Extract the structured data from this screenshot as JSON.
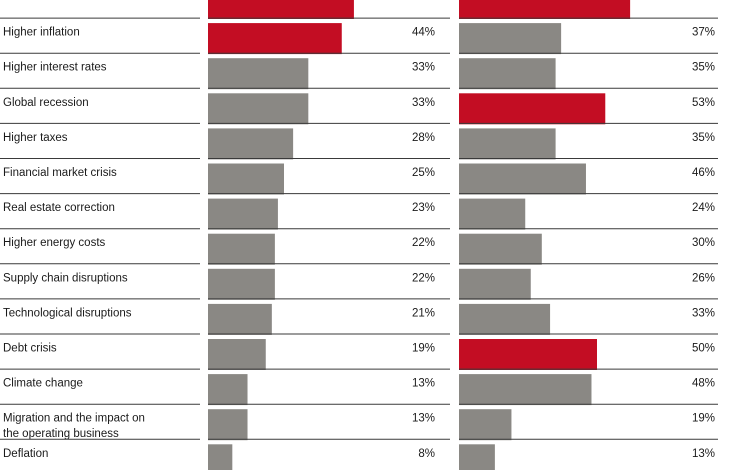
{
  "chart_data": {
    "type": "bar",
    "orientation": "horizontal",
    "categories": [
      "",
      "Higher inflation",
      "Higher interest rates",
      "Global recession",
      "Higher taxes",
      "Financial market crisis",
      "Real estate correction",
      "Higher energy costs",
      "Supply chain disruptions",
      "Technological disruptions",
      "Debt crisis",
      "Climate change",
      "Migration and the impact on the operating business",
      "Deflation"
    ],
    "series": [
      {
        "values": [
          48,
          44,
          33,
          33,
          28,
          25,
          23,
          22,
          22,
          21,
          19,
          13,
          13,
          8
        ],
        "labels": [
          "",
          "44%",
          "33%",
          "33%",
          "28%",
          "25%",
          "23%",
          "22%",
          "22%",
          "21%",
          "19%",
          "13%",
          "13%",
          "8%"
        ],
        "highlighted": [
          true,
          true,
          false,
          false,
          false,
          false,
          false,
          false,
          false,
          false,
          false,
          false,
          false,
          false
        ]
      },
      {
        "values": [
          62,
          37,
          35,
          53,
          35,
          46,
          24,
          30,
          26,
          33,
          50,
          48,
          19,
          13
        ],
        "labels": [
          "",
          "37%",
          "35%",
          "53%",
          "35%",
          "46%",
          "24%",
          "30%",
          "26%",
          "33%",
          "50%",
          "48%",
          "19%",
          "13%"
        ],
        "highlighted": [
          true,
          false,
          false,
          true,
          false,
          false,
          false,
          false,
          false,
          false,
          true,
          false,
          false,
          false
        ]
      }
    ],
    "xlim": [
      0,
      100
    ],
    "colors": {
      "highlight": "#c30d23",
      "default": "#8a8884",
      "separator": "#3a3a3a"
    },
    "grid": false,
    "legend": "none"
  }
}
